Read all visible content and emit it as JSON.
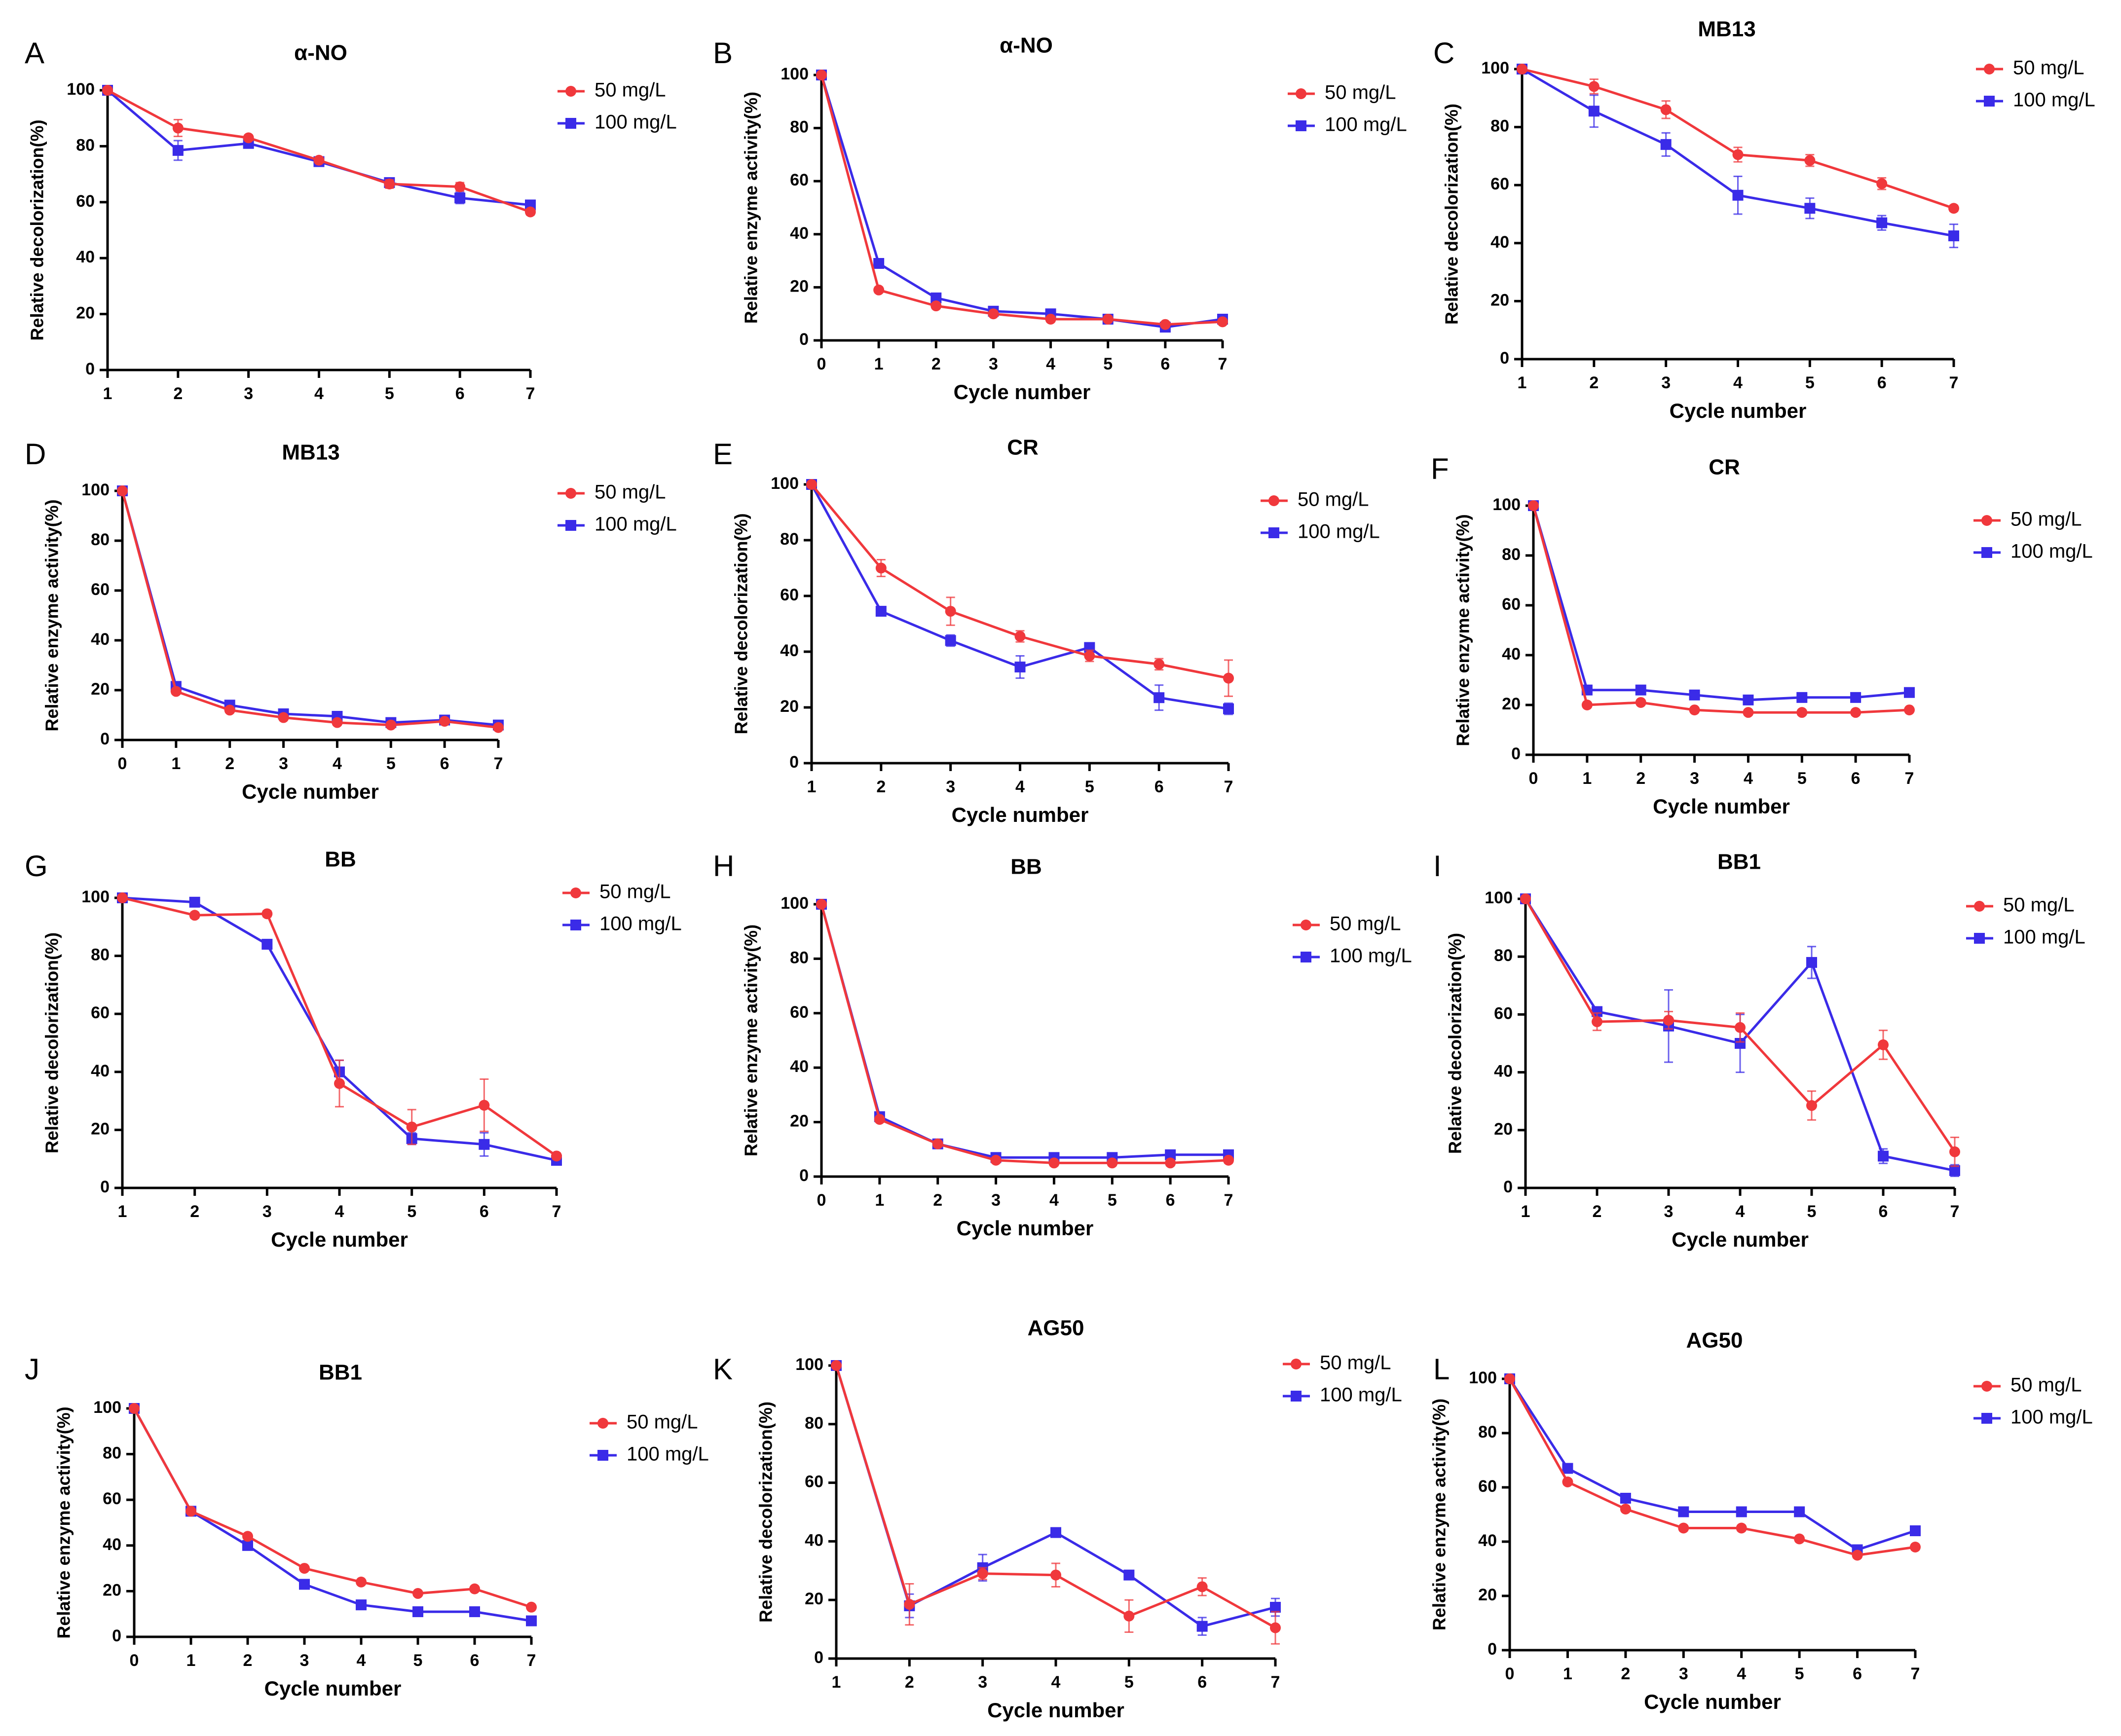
{
  "colors": {
    "series_50": "#F0383C",
    "series_100": "#3A2BE8",
    "axis": "#000000"
  },
  "legend_labels": [
    "50 mg/L",
    "100 mg/L"
  ],
  "chart_data": [
    {
      "panel": "A",
      "title": "α-NO",
      "type": "line",
      "xlabel": "",
      "ylabel": "Relative decolorization(%)",
      "x": [
        1,
        2,
        3,
        4,
        5,
        6,
        7
      ],
      "xlim": [
        1,
        7
      ],
      "ylim": [
        0,
        100
      ],
      "yticks": [
        0,
        20,
        40,
        60,
        80,
        100
      ],
      "series": [
        {
          "name": "50 mg/L",
          "values": [
            100,
            86.5,
            83,
            75,
            66.5,
            65.5,
            56.5
          ],
          "errors": [
            0,
            3,
            1,
            1,
            1.5,
            1.5,
            1
          ]
        },
        {
          "name": "100 mg/L",
          "values": [
            100,
            78.5,
            81,
            74.5,
            67,
            61.5,
            59
          ],
          "errors": [
            0,
            3.5,
            1.5,
            1,
            1,
            2,
            1
          ]
        }
      ]
    },
    {
      "panel": "B",
      "title": "α-NO",
      "type": "line",
      "xlabel": "Cycle number",
      "ylabel": "Relative enzyme activity(%)",
      "x": [
        0,
        1,
        2,
        3,
        4,
        5,
        6,
        7
      ],
      "xlim": [
        0,
        7
      ],
      "ylim": [
        0,
        100
      ],
      "yticks": [
        0,
        20,
        40,
        60,
        80,
        100
      ],
      "series": [
        {
          "name": "50 mg/L",
          "values": [
            100,
            19,
            13,
            10,
            8,
            8,
            6,
            7
          ],
          "errors": [
            0,
            1,
            1,
            1,
            1,
            1,
            1,
            1
          ]
        },
        {
          "name": "100 mg/L",
          "values": [
            100,
            29,
            16,
            11,
            10,
            8,
            5,
            8
          ],
          "errors": [
            0,
            1,
            1,
            1,
            1,
            1,
            1,
            1
          ]
        }
      ]
    },
    {
      "panel": "C",
      "title": "MB13",
      "type": "line",
      "xlabel": "Cycle number",
      "ylabel": "Relative decolorization(%)",
      "x": [
        1,
        2,
        3,
        4,
        5,
        6,
        7
      ],
      "xlim": [
        1,
        7
      ],
      "ylim": [
        0,
        100
      ],
      "yticks": [
        0,
        20,
        40,
        60,
        80,
        100
      ],
      "series": [
        {
          "name": "50 mg/L",
          "values": [
            100,
            94,
            86,
            70.5,
            68.5,
            60.5,
            52
          ],
          "errors": [
            0,
            2.5,
            3,
            2.5,
            2,
            2,
            1
          ]
        },
        {
          "name": "100 mg/L",
          "values": [
            100,
            85.5,
            74,
            56.5,
            52,
            47,
            42.5
          ],
          "errors": [
            0,
            5.5,
            4,
            6.5,
            3.5,
            2.5,
            4
          ]
        }
      ]
    },
    {
      "panel": "D",
      "title": "MB13",
      "type": "line",
      "xlabel": "Cycle number",
      "ylabel": "Relative enzyme activity(%)",
      "x": [
        0,
        1,
        2,
        3,
        4,
        5,
        6,
        7
      ],
      "xlim": [
        0,
        7
      ],
      "ylim": [
        0,
        100
      ],
      "yticks": [
        0,
        20,
        40,
        60,
        80,
        100
      ],
      "series": [
        {
          "name": "50 mg/L",
          "values": [
            100,
            19.5,
            12,
            9,
            7,
            6,
            7.5,
            5
          ],
          "errors": [
            0,
            1,
            1,
            1,
            1,
            1,
            1,
            1
          ]
        },
        {
          "name": "100 mg/L",
          "values": [
            100,
            21.5,
            14,
            10.5,
            9.5,
            7,
            8,
            6
          ],
          "errors": [
            0,
            1,
            1,
            1,
            1,
            1,
            1,
            1
          ]
        }
      ]
    },
    {
      "panel": "E",
      "title": "CR",
      "type": "line",
      "xlabel": "Cycle number",
      "ylabel": "Relative decolorization(%)",
      "x": [
        1,
        2,
        3,
        4,
        5,
        6,
        7
      ],
      "xlim": [
        1,
        7
      ],
      "ylim": [
        0,
        100
      ],
      "yticks": [
        0,
        20,
        40,
        60,
        80,
        100
      ],
      "series": [
        {
          "name": "50 mg/L",
          "values": [
            100,
            70,
            54.5,
            45.5,
            38.5,
            35.5,
            30.5
          ],
          "errors": [
            0,
            3,
            5,
            2,
            2,
            2,
            6.5
          ]
        },
        {
          "name": "100 mg/L",
          "values": [
            100,
            54.5,
            44,
            34.5,
            41.5,
            23.5,
            19.5
          ],
          "errors": [
            0,
            1.5,
            2,
            4,
            1.5,
            4.5,
            2
          ]
        }
      ]
    },
    {
      "panel": "F",
      "title": "CR",
      "type": "line",
      "xlabel": "Cycle number",
      "ylabel": "Relative enzyme activity(%)",
      "x": [
        0,
        1,
        2,
        3,
        4,
        5,
        6,
        7
      ],
      "xlim": [
        0,
        7
      ],
      "ylim": [
        0,
        100
      ],
      "yticks": [
        0,
        20,
        40,
        60,
        80,
        100
      ],
      "series": [
        {
          "name": "50 mg/L",
          "values": [
            100,
            20,
            21,
            18,
            17,
            17,
            17,
            18
          ],
          "errors": [
            0,
            1,
            1,
            1,
            1,
            1,
            1,
            1
          ]
        },
        {
          "name": "100 mg/L",
          "values": [
            100,
            26,
            26,
            24,
            22,
            23,
            23,
            25
          ],
          "errors": [
            0,
            1,
            1,
            1,
            1,
            1,
            1,
            1
          ]
        }
      ]
    },
    {
      "panel": "G",
      "title": "BB",
      "type": "line",
      "xlabel": "Cycle number",
      "ylabel": "Relative decolorization(%)",
      "x": [
        1,
        2,
        3,
        4,
        5,
        6,
        7
      ],
      "xlim": [
        1,
        7
      ],
      "ylim": [
        0,
        100
      ],
      "yticks": [
        0,
        20,
        40,
        60,
        80,
        100
      ],
      "series": [
        {
          "name": "50 mg/L",
          "values": [
            100,
            94,
            94.5,
            36,
            21,
            28.5,
            11
          ],
          "errors": [
            0,
            1,
            1,
            8,
            6,
            9,
            1
          ]
        },
        {
          "name": "100 mg/L",
          "values": [
            100,
            98.5,
            84,
            40,
            17,
            15,
            9.5
          ],
          "errors": [
            0,
            1,
            1,
            4,
            2,
            4,
            1
          ]
        }
      ]
    },
    {
      "panel": "H",
      "title": "BB",
      "type": "line",
      "xlabel": "Cycle number",
      "ylabel": "Relative enzyme activity(%)",
      "x": [
        0,
        1,
        2,
        3,
        4,
        5,
        6,
        7
      ],
      "xlim": [
        0,
        7
      ],
      "ylim": [
        0,
        100
      ],
      "yticks": [
        0,
        20,
        40,
        60,
        80,
        100
      ],
      "series": [
        {
          "name": "50 mg/L",
          "values": [
            100,
            21,
            12,
            6,
            5,
            5,
            5,
            6
          ],
          "errors": [
            0,
            1,
            1,
            1,
            1,
            1,
            1,
            1
          ]
        },
        {
          "name": "100 mg/L",
          "values": [
            100,
            22,
            12,
            7,
            7,
            7,
            8,
            8
          ],
          "errors": [
            0,
            1,
            1,
            1,
            1,
            1,
            1,
            1
          ]
        }
      ]
    },
    {
      "panel": "I",
      "title": "BB1",
      "type": "line",
      "xlabel": "Cycle number",
      "ylabel": "Relative decolorization(%)",
      "x": [
        1,
        2,
        3,
        4,
        5,
        6,
        7
      ],
      "xlim": [
        1,
        7
      ],
      "ylim": [
        0,
        100
      ],
      "yticks": [
        0,
        20,
        40,
        60,
        80,
        100
      ],
      "series": [
        {
          "name": "50 mg/L",
          "values": [
            100,
            57.5,
            58,
            55.5,
            28.5,
            49.5,
            12.5
          ],
          "errors": [
            0,
            3,
            3,
            5,
            5,
            5,
            5
          ]
        },
        {
          "name": "100 mg/L",
          "values": [
            100,
            61,
            56,
            50,
            78,
            11,
            6
          ],
          "errors": [
            0,
            1,
            12.5,
            10,
            5.5,
            2.5,
            2
          ]
        }
      ]
    },
    {
      "panel": "J",
      "title": "BB1",
      "type": "line",
      "xlabel": "Cycle number",
      "ylabel": "Relative enzyme activity(%)",
      "x": [
        0,
        1,
        2,
        3,
        4,
        5,
        6,
        7
      ],
      "xlim": [
        0,
        7
      ],
      "ylim": [
        0,
        100
      ],
      "yticks": [
        0,
        20,
        40,
        60,
        80,
        100
      ],
      "series": [
        {
          "name": "50 mg/L",
          "values": [
            100,
            55,
            44,
            30,
            24,
            19,
            21,
            13
          ],
          "errors": [
            0,
            1,
            1,
            1,
            1,
            1,
            1,
            1
          ]
        },
        {
          "name": "100 mg/L",
          "values": [
            100,
            55,
            40,
            23,
            14,
            11,
            11,
            7
          ],
          "errors": [
            0,
            1,
            1,
            1,
            1,
            1,
            1,
            1
          ]
        }
      ]
    },
    {
      "panel": "K",
      "title": "AG50",
      "type": "line",
      "xlabel": "Cycle number",
      "ylabel": "Relative decolorization(%)",
      "x": [
        1,
        2,
        3,
        4,
        5,
        6,
        7
      ],
      "xlim": [
        1,
        7
      ],
      "ylim": [
        0,
        100
      ],
      "yticks": [
        0,
        20,
        40,
        60,
        80,
        100
      ],
      "series": [
        {
          "name": "50 mg/L",
          "values": [
            100,
            18.5,
            29,
            28.5,
            14.5,
            24.5,
            10.5
          ],
          "errors": [
            0,
            7,
            2,
            4,
            5.5,
            3,
            5.5
          ]
        },
        {
          "name": "100 mg/L",
          "values": [
            100,
            18,
            31,
            43,
            28.5,
            11,
            17.5
          ],
          "errors": [
            0,
            4,
            4.5,
            1,
            1.5,
            3,
            3
          ]
        }
      ]
    },
    {
      "panel": "L",
      "title": "AG50",
      "type": "line",
      "xlabel": "Cycle number",
      "ylabel": "Relative enzyme activity(%)",
      "x": [
        0,
        1,
        2,
        3,
        4,
        5,
        6,
        7
      ],
      "xlim": [
        0,
        7
      ],
      "ylim": [
        0,
        100
      ],
      "yticks": [
        0,
        20,
        40,
        60,
        80,
        100
      ],
      "series": [
        {
          "name": "50 mg/L",
          "values": [
            100,
            62,
            52,
            45,
            45,
            41,
            35,
            38
          ],
          "errors": [
            0,
            1,
            1,
            1,
            1,
            1,
            1,
            1
          ]
        },
        {
          "name": "100 mg/L",
          "values": [
            100,
            67,
            56,
            51,
            51,
            51,
            37,
            44
          ],
          "errors": [
            0,
            1,
            1,
            1,
            1,
            1,
            1,
            1
          ]
        }
      ]
    }
  ]
}
